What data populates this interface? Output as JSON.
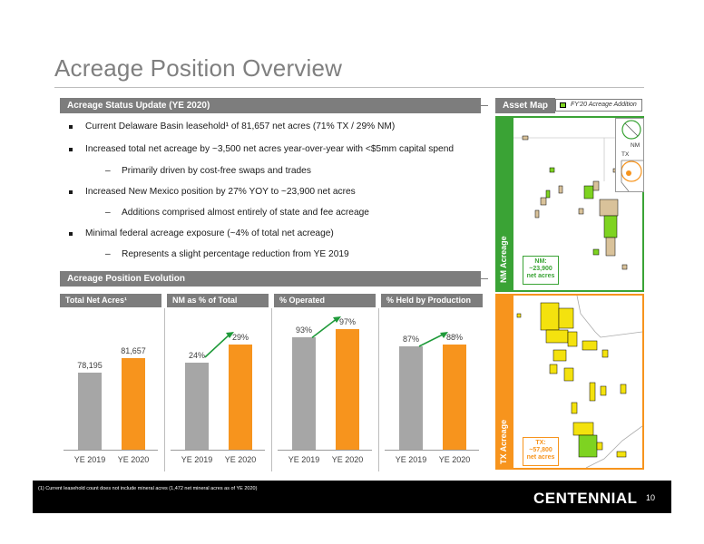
{
  "title": "Acreage Position Overview",
  "status_section": {
    "header": "Acreage Status Update (YE 2020)",
    "bullets": [
      {
        "level": 1,
        "text": "Current Delaware Basin leasehold¹ of 81,657 net acres (71% TX / 29% NM)"
      },
      {
        "level": 1,
        "text": "Increased total net acreage by ~3,500 net acres year-over-year with <$5mm capital spend"
      },
      {
        "level": 2,
        "text": "Primarily driven by cost-free swaps and trades"
      },
      {
        "level": 1,
        "text": "Increased New Mexico position by 27% YOY to ~23,900 net acres"
      },
      {
        "level": 2,
        "text": "Additions comprised almost entirely of state and fee acreage"
      },
      {
        "level": 1,
        "text": "Minimal federal acreage exposure (~4% of total net acreage)"
      },
      {
        "level": 2,
        "text": "Represents a slight percentage reduction from YE 2019"
      }
    ]
  },
  "evolution_section": {
    "header": "Acreage Position Evolution"
  },
  "chart_data": [
    {
      "type": "bar",
      "title": "Total Net Acres¹",
      "categories": [
        "YE 2019",
        "YE 2020"
      ],
      "values": [
        78195,
        81657
      ],
      "labels": [
        "78,195",
        "81,657"
      ]
    },
    {
      "type": "bar",
      "title": "NM as % of Total",
      "categories": [
        "YE 2019",
        "YE 2020"
      ],
      "values": [
        24,
        29
      ],
      "labels": [
        "24%",
        "29%"
      ]
    },
    {
      "type": "bar",
      "title": "% Operated",
      "categories": [
        "YE 2019",
        "YE 2020"
      ],
      "values": [
        93,
        97
      ],
      "labels": [
        "93%",
        "97%"
      ]
    },
    {
      "type": "bar",
      "title": "% Held by Production",
      "categories": [
        "YE 2019",
        "YE 2020"
      ],
      "values": [
        87,
        88
      ],
      "labels": [
        "87%",
        "88%"
      ]
    }
  ],
  "colors": {
    "bar_2019": "#a6a6a6",
    "bar_2020": "#f7941d",
    "arrow": "#1f9a3a",
    "nm_green": "#3aa335",
    "tx_orange": "#f7941d",
    "header_gray": "#7d7d7d"
  },
  "asset_map": {
    "header": "Asset Map",
    "legend": "FY'20 Acreage Addition",
    "nm_label": "NM Acreage",
    "tx_label": "TX Acreage",
    "nm_callout": [
      "NM:",
      "~23,900",
      "net acres"
    ],
    "tx_callout": [
      "TX:",
      "~57,800",
      "net acres"
    ],
    "inset_nm": "NM",
    "inset_tx": "TX"
  },
  "footnote": "(1)     Current leasehold count does not include mineral acres (1,472 net mineral acres as of YE 2020)",
  "logo": "CENTENNIAL",
  "page_number": "10"
}
